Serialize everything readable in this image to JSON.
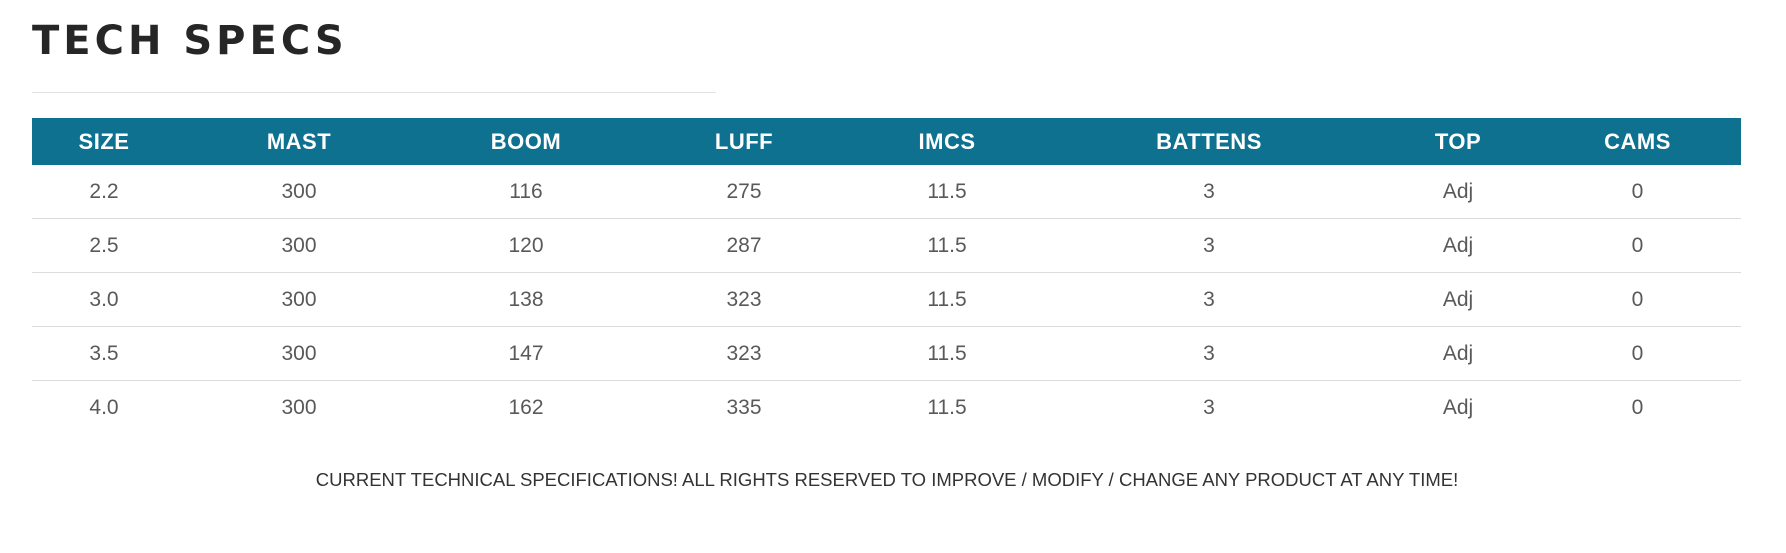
{
  "header": {
    "title": "TECH SPECS"
  },
  "table": {
    "columns": [
      "SIZE",
      "MAST",
      "BOOM",
      "LUFF",
      "IMCS",
      "BATTENS",
      "TOP",
      "CAMS"
    ],
    "rows": [
      [
        "2.2",
        "300",
        "116",
        "275",
        "11.5",
        "3",
        "Adj",
        "0"
      ],
      [
        "2.5",
        "300",
        "120",
        "287",
        "11.5",
        "3",
        "Adj",
        "0"
      ],
      [
        "3.0",
        "300",
        "138",
        "323",
        "11.5",
        "3",
        "Adj",
        "0"
      ],
      [
        "3.5",
        "300",
        "147",
        "323",
        "11.5",
        "3",
        "Adj",
        "0"
      ],
      [
        "4.0",
        "300",
        "162",
        "335",
        "11.5",
        "3",
        "Adj",
        "0"
      ]
    ]
  },
  "footnote": "CURRENT TECHNICAL SPECIFICATIONS! ALL RIGHTS RESERVED TO IMPROVE / MODIFY / CHANGE ANY PRODUCT AT ANY TIME!"
}
